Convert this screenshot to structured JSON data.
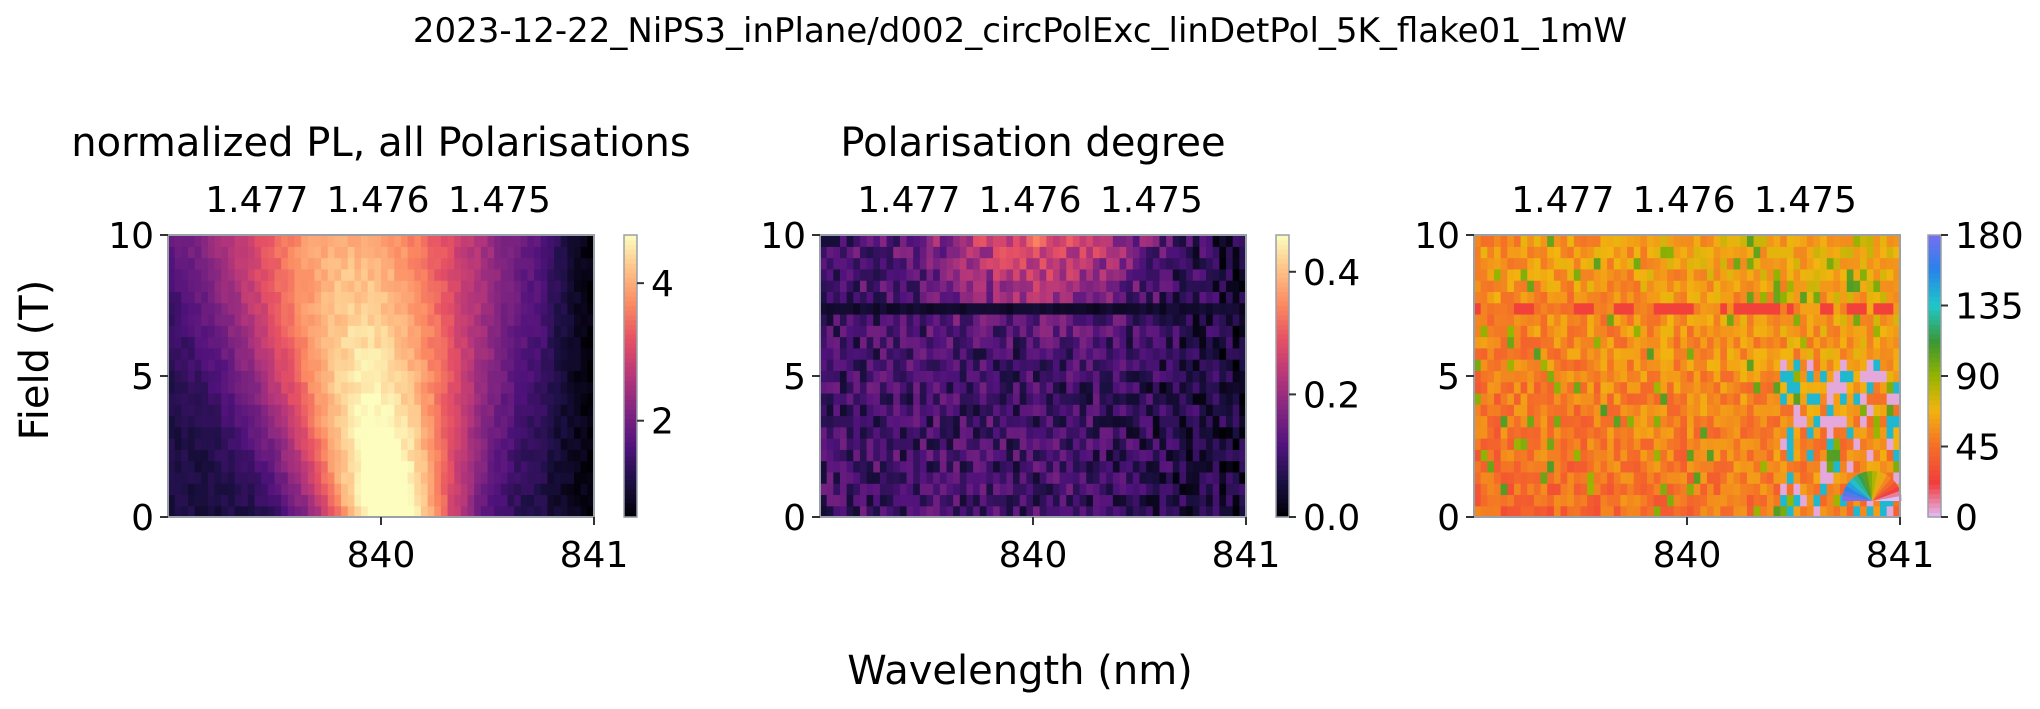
{
  "figure": {
    "suptitle": "2023-12-22_NiPS3_inPlane/d002_circPolExc_linDetPol_5K_flake01_1mW",
    "xlabel": "Wavelength (nm)",
    "ylabel": "Field (T)"
  },
  "chart_data": [
    {
      "type": "heatmap",
      "title": "normalized PL, all Polarisations",
      "colormap": "magma",
      "xlim": [
        839.0,
        841.0
      ],
      "ylim": [
        0,
        10
      ],
      "x_ticks": [
        840,
        841
      ],
      "y_ticks": [
        0,
        5,
        10
      ],
      "top_axis_ticks": [
        {
          "label": "1.477",
          "x": 839.417
        },
        {
          "label": "1.476",
          "x": 839.986
        },
        {
          "label": "1.475",
          "x": 840.556
        }
      ],
      "colorbar": {
        "range": [
          0.6,
          4.7
        ],
        "ticks": [
          2,
          4
        ]
      }
    },
    {
      "type": "heatmap",
      "title": "Polarisation degree",
      "colormap": "magma",
      "xlim": [
        839.0,
        841.0
      ],
      "ylim": [
        0,
        10
      ],
      "x_ticks": [
        840,
        841
      ],
      "y_ticks": [
        0,
        5,
        10
      ],
      "top_axis_ticks": [
        {
          "label": "1.477",
          "x": 839.417
        },
        {
          "label": "1.476",
          "x": 839.986
        },
        {
          "label": "1.475",
          "x": 840.556
        }
      ],
      "colorbar": {
        "range": [
          0.0,
          0.46
        ],
        "ticks": [
          0.0,
          0.2,
          0.4
        ]
      }
    },
    {
      "type": "heatmap",
      "title": "",
      "colormap": "hsv-like (pink-red-orange-yellow-green-cyan-blue)",
      "xlim": [
        839.0,
        841.0
      ],
      "ylim": [
        0,
        10
      ],
      "x_ticks": [
        840,
        841
      ],
      "y_ticks": [
        0,
        5,
        10
      ],
      "top_axis_ticks": [
        {
          "label": "1.477",
          "x": 839.417
        },
        {
          "label": "1.476",
          "x": 839.986
        },
        {
          "label": "1.475",
          "x": 840.556
        }
      ],
      "colorbar": {
        "range": [
          0,
          180
        ],
        "ticks": [
          0,
          45,
          90,
          135,
          180
        ]
      },
      "inset": "polarisation-angle-wheel"
    }
  ]
}
